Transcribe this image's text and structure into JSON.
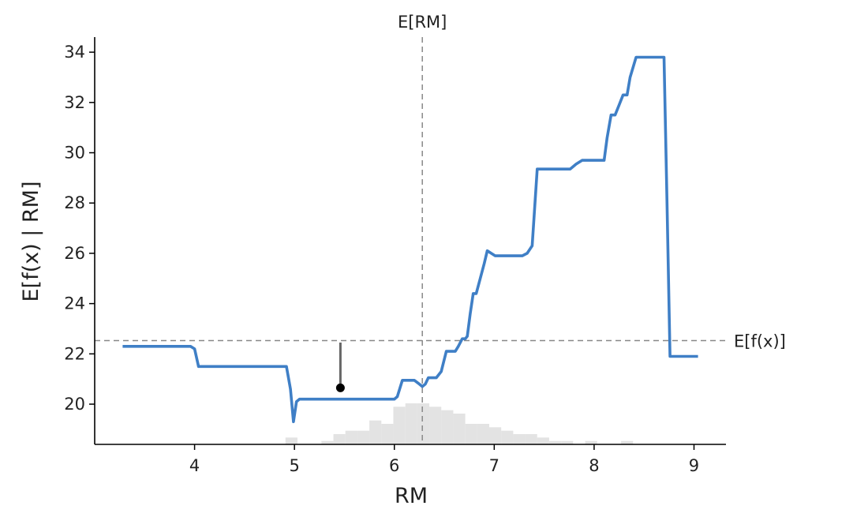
{
  "chart_data": {
    "type": "line",
    "xlabel": "RM",
    "ylabel": "E[f(x) | RM]",
    "xlim": [
      3.0,
      9.32
    ],
    "ylim": [
      18.4,
      34.6
    ],
    "xticks": [
      4,
      5,
      6,
      7,
      8,
      9
    ],
    "yticks": [
      20,
      22,
      24,
      26,
      28,
      30,
      32,
      34
    ],
    "grid": false,
    "colors": {
      "line": "#3f7fc6",
      "reference": "#888888",
      "histogram": "#e3e3e3",
      "sample_stem": "#666666",
      "sample_point": "#000000"
    },
    "series": [
      {
        "x": [
          3.28,
          3.34,
          3.41,
          3.48,
          3.56,
          3.64,
          3.72,
          3.8,
          3.88,
          3.96,
          4.0,
          4.04,
          4.12,
          4.2,
          4.28,
          4.36,
          4.44,
          4.52,
          4.6,
          4.68,
          4.76,
          4.84,
          4.92,
          4.96,
          4.99,
          5.02,
          5.05,
          5.1,
          5.15,
          5.2,
          5.3,
          5.4,
          5.5,
          5.6,
          5.7,
          5.8,
          5.9,
          6.0,
          6.03,
          6.08,
          6.14,
          6.2,
          6.25,
          6.28,
          6.31,
          6.34,
          6.38,
          6.42,
          6.47,
          6.52,
          6.57,
          6.61,
          6.64,
          6.68,
          6.71,
          6.73,
          6.76,
          6.79,
          6.82,
          6.86,
          6.9,
          6.93,
          6.97,
          7.01,
          7.05,
          7.1,
          7.16,
          7.22,
          7.28,
          7.33,
          7.38,
          7.43,
          7.46,
          7.48,
          7.52,
          7.58,
          7.64,
          7.7,
          7.76,
          7.82,
          7.88,
          7.94,
          8.0,
          8.06,
          8.1,
          8.13,
          8.17,
          8.21,
          8.25,
          8.29,
          8.33,
          8.36,
          8.42,
          8.48,
          8.54,
          8.6,
          8.66,
          8.7,
          8.73,
          8.76,
          8.8,
          8.85,
          8.9,
          8.95,
          9.0,
          9.04
        ],
        "y": [
          22.3,
          22.3,
          22.3,
          22.3,
          22.3,
          22.3,
          22.3,
          22.3,
          22.3,
          22.3,
          22.2,
          21.5,
          21.5,
          21.5,
          21.5,
          21.5,
          21.5,
          21.5,
          21.5,
          21.5,
          21.5,
          21.5,
          21.5,
          20.6,
          19.3,
          20.1,
          20.2,
          20.2,
          20.2,
          20.2,
          20.2,
          20.2,
          20.2,
          20.2,
          20.2,
          20.2,
          20.2,
          20.2,
          20.3,
          20.95,
          20.95,
          20.95,
          20.8,
          20.7,
          20.8,
          21.05,
          21.05,
          21.05,
          21.3,
          22.1,
          22.1,
          22.1,
          22.3,
          22.6,
          22.6,
          22.7,
          23.6,
          24.4,
          24.4,
          25.0,
          25.6,
          26.1,
          26.0,
          25.9,
          25.9,
          25.9,
          25.9,
          25.9,
          25.9,
          26.0,
          26.3,
          29.35,
          29.35,
          29.35,
          29.35,
          29.35,
          29.35,
          29.35,
          29.35,
          29.55,
          29.7,
          29.7,
          29.7,
          29.7,
          29.7,
          30.6,
          31.5,
          31.5,
          31.9,
          32.3,
          32.3,
          33.0,
          33.8,
          33.8,
          33.8,
          33.8,
          33.8,
          33.8,
          28.0,
          21.9,
          21.9,
          21.9,
          21.9,
          21.9,
          21.9,
          21.9
        ]
      }
    ],
    "reference_lines": {
      "expected_x": {
        "label": "E[RM]",
        "value": 6.28
      },
      "expected_y": {
        "label": "E[f(x)]",
        "value": 22.53
      }
    },
    "sample_point": {
      "x": 5.46,
      "y": 20.65,
      "stem_to": 22.45
    },
    "histogram": {
      "bin_edges": [
        4.91,
        5.03,
        5.15,
        5.27,
        5.39,
        5.51,
        5.63,
        5.75,
        5.87,
        5.99,
        6.11,
        6.23,
        6.35,
        6.47,
        6.59,
        6.71,
        6.83,
        6.95,
        7.07,
        7.19,
        7.31,
        7.43,
        7.55,
        7.67,
        7.79,
        7.91,
        8.03,
        8.15,
        8.27,
        8.39,
        8.51,
        8.63
      ],
      "counts": [
        2,
        0,
        0,
        1,
        3,
        4,
        4,
        7,
        6,
        11,
        12,
        12,
        11,
        10,
        9,
        6,
        6,
        5,
        4,
        3,
        3,
        2,
        1,
        1,
        0,
        1,
        0,
        0,
        1,
        0,
        0
      ]
    }
  }
}
